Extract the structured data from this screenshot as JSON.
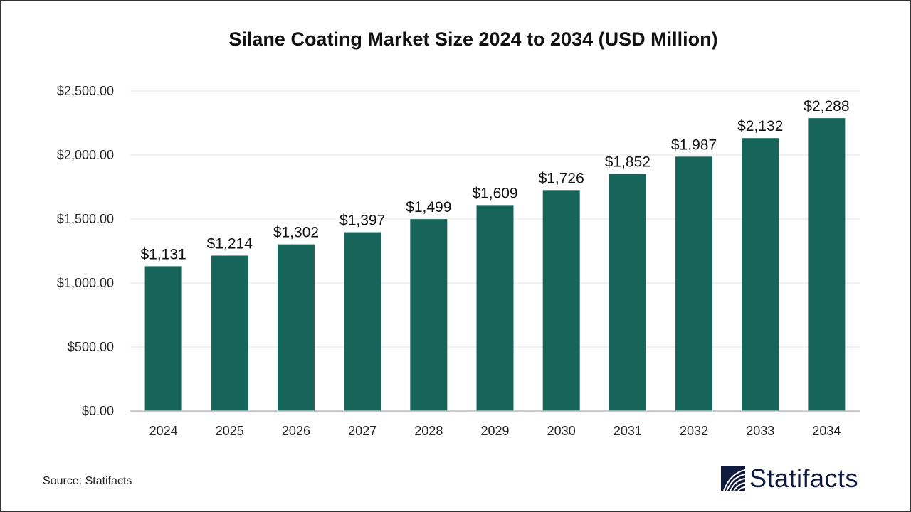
{
  "chart_data": {
    "type": "bar",
    "title": "Silane Coating Market Size 2024 to 2034 (USD Million)",
    "categories": [
      "2024",
      "2025",
      "2026",
      "2027",
      "2028",
      "2029",
      "2030",
      "2031",
      "2032",
      "2033",
      "2034"
    ],
    "values": [
      1131,
      1214,
      1302,
      1397,
      1499,
      1609,
      1726,
      1852,
      1987,
      2132,
      2288
    ],
    "data_labels": [
      "$1,131",
      "$1,214",
      "$1,302",
      "$1,397",
      "$1,499",
      "$1,609",
      "$1,726",
      "$1,852",
      "$1,987",
      "$2,132",
      "$2,288"
    ],
    "yticks": [
      0,
      500,
      1000,
      1500,
      2000,
      2500
    ],
    "ytick_labels": [
      "$0.00",
      "$500.00",
      "$1,000.00",
      "$1,500.00",
      "$2,000.00",
      "$2,500.00"
    ],
    "ylim": [
      0,
      2500
    ],
    "xlabel": "",
    "ylabel": "",
    "grid": true,
    "bar_color": "#17655a"
  },
  "source": "Source: Statifacts",
  "logo_text": "Statifacts",
  "logo_color": "#101a3e"
}
